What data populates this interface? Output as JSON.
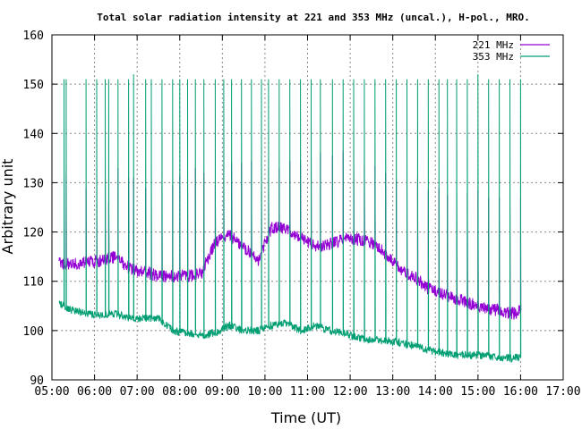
{
  "chart_data": {
    "type": "line",
    "title": "Total solar radiation intensity at 221 and 353 MHz (uncal.), H-pol., MRO.",
    "xlabel": "Time (UT)",
    "ylabel": "Arbitrary unit",
    "xlim": [
      "05:00",
      "17:00"
    ],
    "ylim": [
      90,
      160
    ],
    "x_ticks": [
      "05:00",
      "06:00",
      "07:00",
      "08:00",
      "09:00",
      "10:00",
      "11:00",
      "12:00",
      "13:00",
      "14:00",
      "15:00",
      "16:00",
      "17:00"
    ],
    "y_ticks": [
      "90",
      "100",
      "110",
      "120",
      "130",
      "140",
      "150",
      "160"
    ],
    "grid": true,
    "legend_position": "top-right",
    "series": [
      {
        "name": "221 MHz",
        "color": "#9400d3",
        "x": [
          "05:10",
          "05:30",
          "05:50",
          "06:10",
          "06:30",
          "06:50",
          "07:10",
          "07:30",
          "07:50",
          "08:10",
          "08:30",
          "08:50",
          "09:10",
          "09:30",
          "09:50",
          "10:10",
          "10:30",
          "10:50",
          "11:10",
          "11:30",
          "11:50",
          "12:10",
          "12:30",
          "12:50",
          "13:10",
          "13:30",
          "13:50",
          "14:10",
          "14:30",
          "14:50",
          "15:10",
          "15:30",
          "15:50",
          "16:00"
        ],
        "y": [
          113.8,
          113.5,
          113.8,
          114.2,
          115,
          112.5,
          112,
          111,
          111,
          111,
          111.5,
          118,
          119.5,
          117,
          114,
          121,
          120.5,
          119,
          117,
          117.5,
          118.5,
          118.5,
          118,
          115.5,
          112.5,
          111,
          108.5,
          107.5,
          106.5,
          105.5,
          104.5,
          104,
          103.5,
          104
        ],
        "spike_x": [
          "05:17",
          "05:20",
          "05:48",
          "06:03",
          "06:15",
          "06:20",
          "06:33",
          "06:48",
          "06:55",
          "07:12",
          "07:20",
          "07:35",
          "07:50",
          "08:00",
          "08:11",
          "08:22",
          "08:34",
          "08:50",
          "09:02",
          "09:13",
          "09:27",
          "09:41",
          "09:55",
          "10:05",
          "10:20",
          "10:35",
          "10:50",
          "11:05",
          "11:18",
          "11:35",
          "11:50",
          "12:05",
          "12:20",
          "12:35",
          "12:50",
          "13:05",
          "13:20",
          "13:35",
          "13:50",
          "14:05",
          "14:17",
          "14:30",
          "14:45",
          "15:00",
          "15:15",
          "15:30",
          "15:45",
          "16:00"
        ],
        "spike_y": [
          132,
          132,
          129,
          130,
          133,
          126,
          133,
          131,
          131,
          129,
          129.5,
          130.5,
          129.5,
          131.5,
          132.5,
          133,
          132,
          129.5,
          133.5,
          134,
          134,
          134.5,
          134,
          133,
          133,
          134.5,
          134.5,
          135.5,
          136,
          135.5,
          136.5,
          135,
          133.5,
          133.5,
          132,
          130.5,
          129.5,
          131,
          128.5,
          129,
          127.5,
          128.5,
          128,
          128.5,
          127,
          127,
          127,
          127
        ]
      },
      {
        "name": "353 MHz",
        "color": "#009e73",
        "x": [
          "05:10",
          "05:30",
          "05:50",
          "06:10",
          "06:30",
          "06:50",
          "07:10",
          "07:30",
          "07:50",
          "08:10",
          "08:30",
          "08:50",
          "09:10",
          "09:30",
          "09:50",
          "10:10",
          "10:30",
          "10:50",
          "11:10",
          "11:30",
          "11:50",
          "12:10",
          "12:30",
          "12:50",
          "13:10",
          "13:30",
          "13:50",
          "14:10",
          "14:30",
          "14:50",
          "15:10",
          "15:30",
          "15:50",
          "16:00"
        ],
        "y": [
          105.5,
          104,
          103.5,
          103,
          103.5,
          102.5,
          102.5,
          102.5,
          100,
          99.5,
          99,
          99.5,
          101,
          100,
          100,
          101,
          101.5,
          100,
          101,
          100,
          99.5,
          98.5,
          98,
          98,
          97.5,
          97,
          96,
          95.5,
          95,
          95,
          95,
          94.5,
          94.5,
          94.5
        ],
        "spike_x": [
          "05:17",
          "05:20",
          "05:48",
          "06:03",
          "06:15",
          "06:20",
          "06:33",
          "06:48",
          "06:55",
          "07:12",
          "07:20",
          "07:35",
          "07:50",
          "08:00",
          "08:11",
          "08:22",
          "08:34",
          "08:50",
          "09:02",
          "09:13",
          "09:27",
          "09:41",
          "09:55",
          "10:05",
          "10:20",
          "10:35",
          "10:50",
          "11:05",
          "11:18",
          "11:35",
          "11:50",
          "12:05",
          "12:20",
          "12:35",
          "12:50",
          "13:05",
          "13:20",
          "13:35",
          "13:50",
          "14:05",
          "14:17",
          "14:30",
          "14:45",
          "15:00",
          "15:15",
          "15:30",
          "15:45",
          "16:00"
        ],
        "spike_y": [
          151,
          151,
          151,
          151,
          151,
          151,
          151,
          151,
          152,
          151,
          151,
          151,
          151,
          151,
          151,
          151,
          151,
          151,
          151,
          151,
          151,
          151,
          151,
          151,
          151,
          151,
          151,
          151,
          151,
          151,
          151,
          151,
          151,
          151,
          151,
          151,
          151,
          151,
          151,
          151,
          151,
          151,
          151,
          152,
          151,
          151,
          151,
          151
        ]
      }
    ]
  }
}
